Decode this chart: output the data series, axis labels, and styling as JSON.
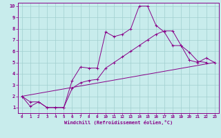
{
  "xlabel": "Windchill (Refroidissement éolien,°C)",
  "bg_color": "#c8ecec",
  "grid_color": "#a0cfcf",
  "line_color": "#880088",
  "spine_color": "#880088",
  "xlim": [
    -0.5,
    23.5
  ],
  "ylim": [
    0.5,
    10.3
  ],
  "xticks": [
    0,
    1,
    2,
    3,
    4,
    5,
    6,
    7,
    8,
    9,
    10,
    11,
    12,
    13,
    14,
    15,
    16,
    17,
    18,
    19,
    20,
    21,
    22,
    23
  ],
  "yticks": [
    1,
    2,
    3,
    4,
    5,
    6,
    7,
    8,
    9,
    10
  ],
  "series1_x": [
    0,
    1,
    2,
    3,
    4,
    5,
    6,
    7,
    8,
    9,
    10,
    11,
    12,
    13,
    14,
    15,
    16,
    17,
    18,
    19,
    20,
    21,
    22
  ],
  "series1_y": [
    2.0,
    1.1,
    1.5,
    1.0,
    1.0,
    1.0,
    3.4,
    4.6,
    4.5,
    4.5,
    7.7,
    7.3,
    7.5,
    8.0,
    10.0,
    10.0,
    8.3,
    7.7,
    6.5,
    6.5,
    5.9,
    5.1,
    5.0
  ],
  "series2_x": [
    0,
    1,
    2,
    3,
    4,
    5,
    6,
    7,
    8,
    9,
    10,
    11,
    12,
    13,
    14,
    15,
    16,
    17,
    18,
    19,
    20,
    21,
    22,
    23
  ],
  "series2_y": [
    2.0,
    1.5,
    1.5,
    1.0,
    1.0,
    1.0,
    2.7,
    3.2,
    3.4,
    3.5,
    4.5,
    5.0,
    5.5,
    6.0,
    6.5,
    7.0,
    7.5,
    7.8,
    7.8,
    6.5,
    5.2,
    5.0,
    5.4,
    5.0
  ],
  "series3_x": [
    0,
    23
  ],
  "series3_y": [
    2.0,
    5.0
  ]
}
